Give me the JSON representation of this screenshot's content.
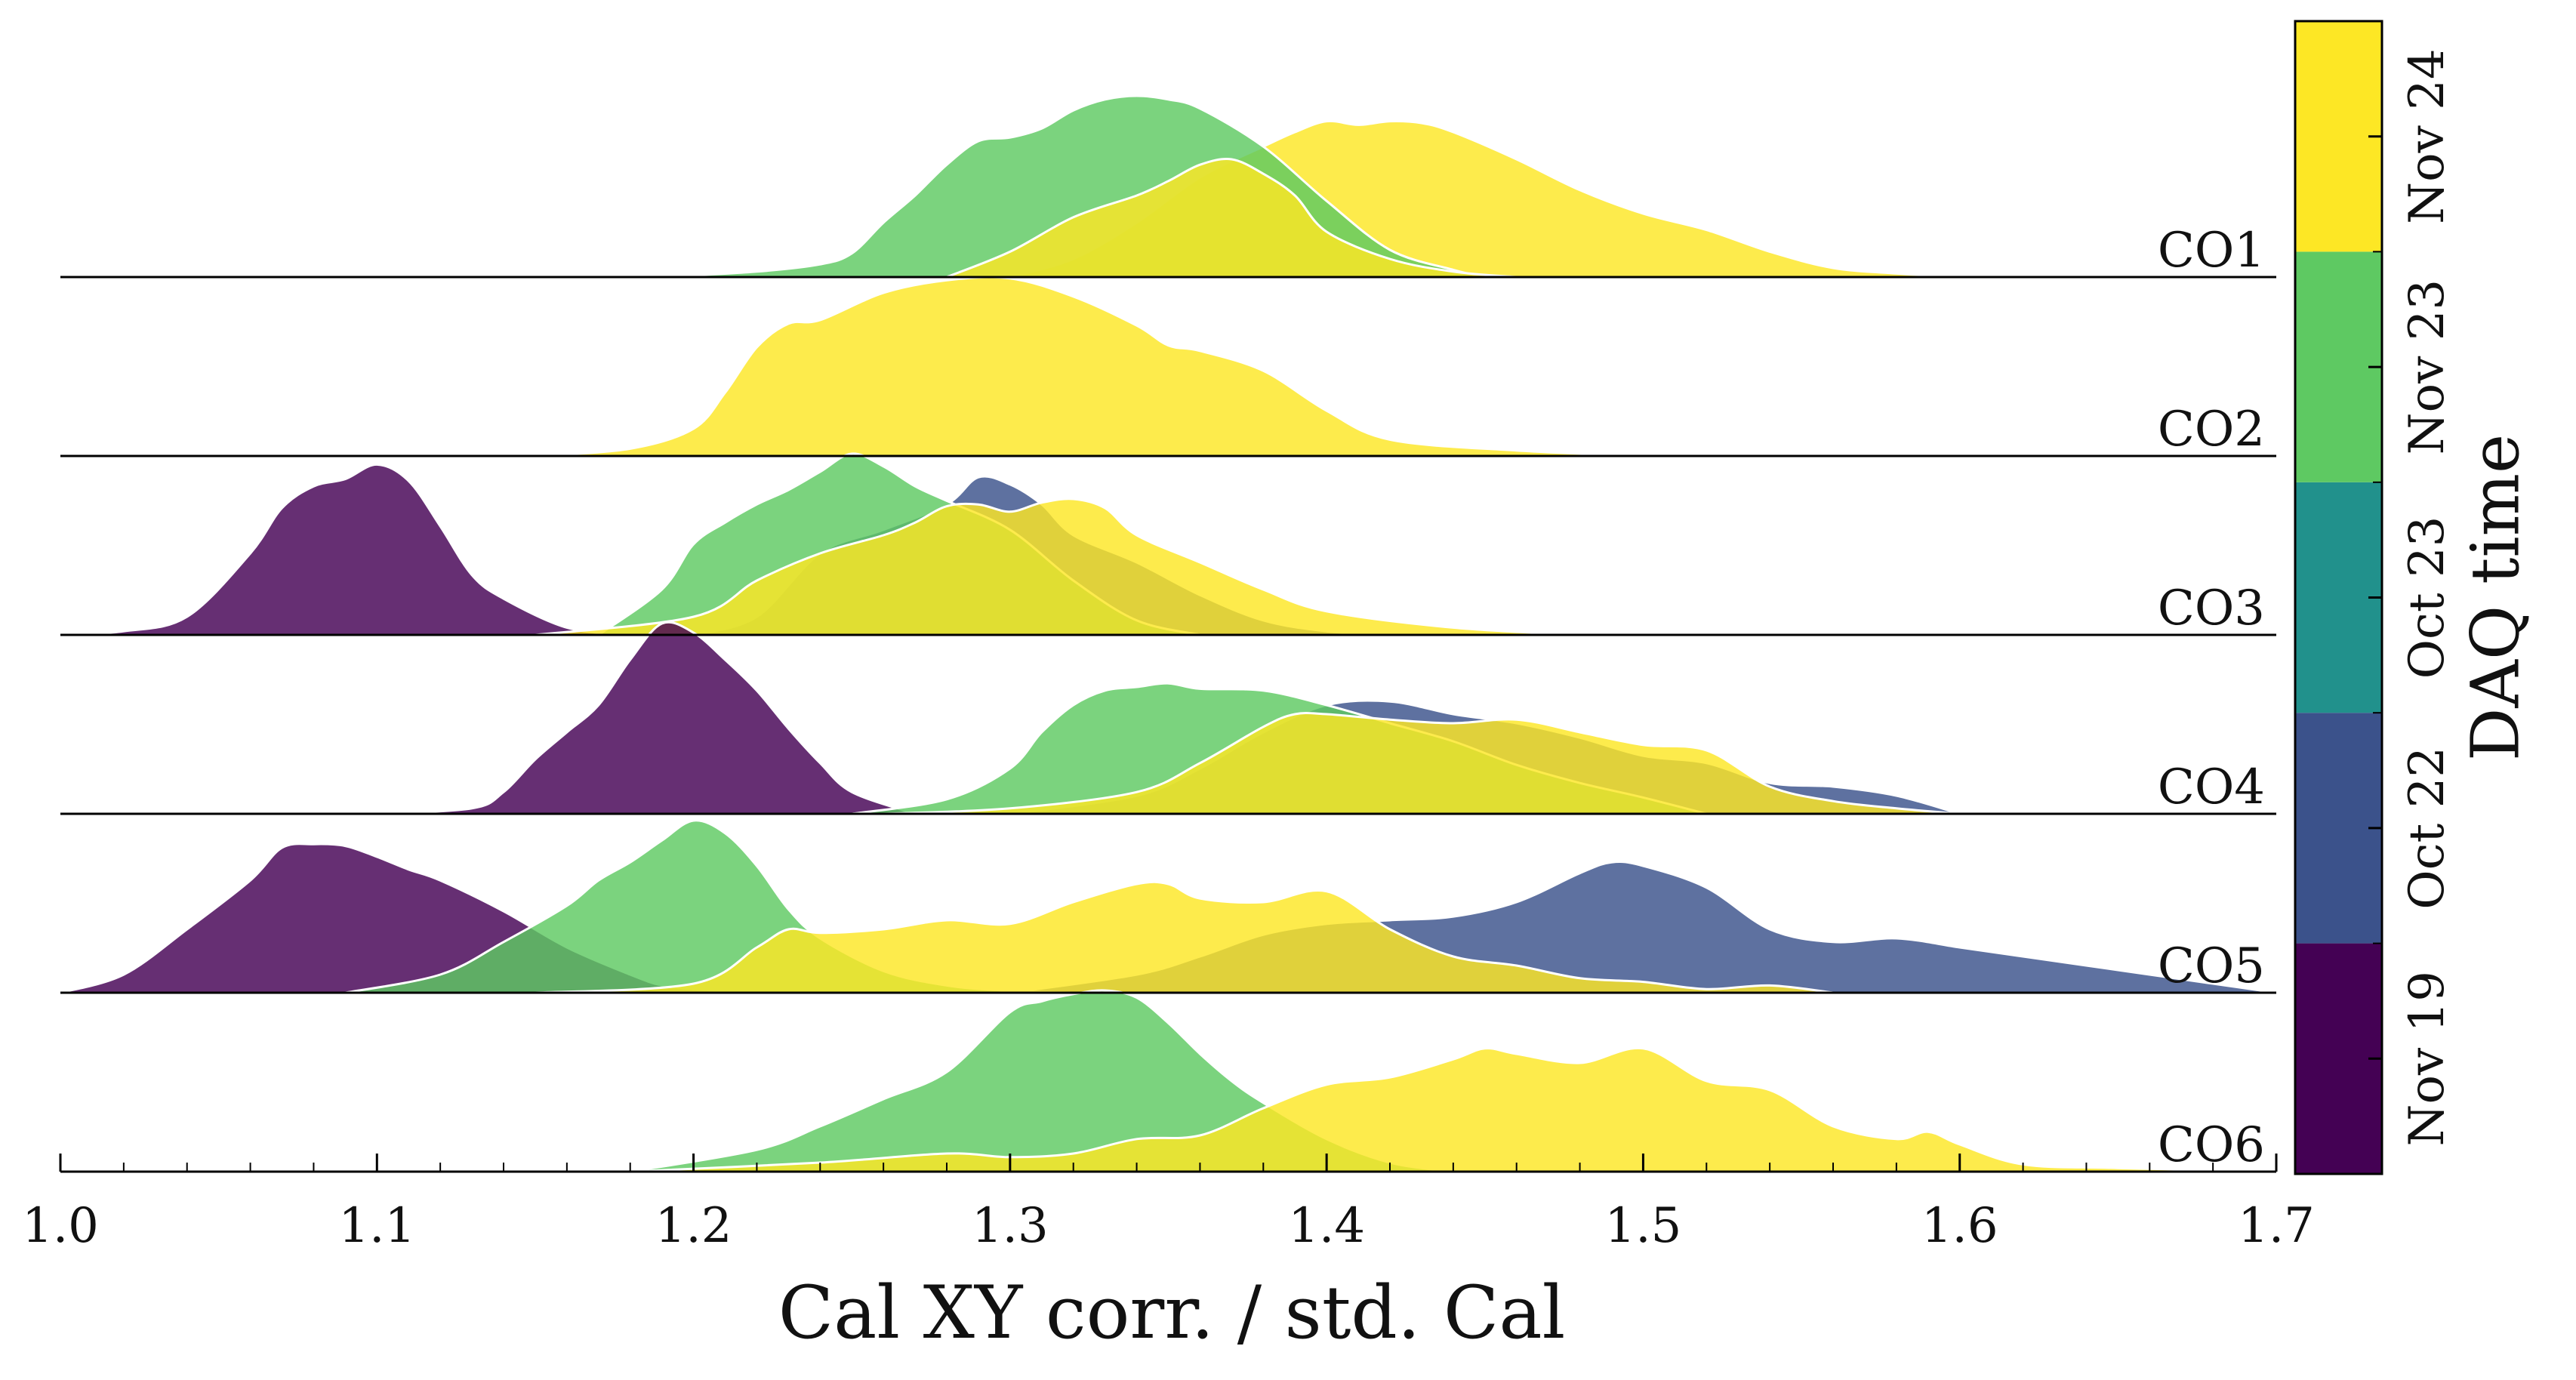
{
  "chart_data": {
    "type": "area",
    "subtype": "ridgeline",
    "xlabel": "Cal XY corr. / std. Cal",
    "xlim": [
      1.0,
      1.7
    ],
    "xticks": [
      "1.0",
      "1.1",
      "1.2",
      "1.3",
      "1.4",
      "1.5",
      "1.6",
      "1.7"
    ],
    "rows": [
      "CO1",
      "CO2",
      "CO3",
      "CO4",
      "CO5",
      "CO6"
    ],
    "colorbar": {
      "title": "DAQ time",
      "labels": [
        "Nov 19",
        "Oct 22",
        "Oct 23",
        "Nov 23",
        "Nov 24"
      ],
      "colors": [
        "#440154",
        "#3b528b",
        "#21918c",
        "#5ec962",
        "#fde725"
      ]
    },
    "series": [
      {
        "row": "CO1",
        "label": "Nov 24",
        "color": "#fde725",
        "x": [
          1.3,
          1.32,
          1.34,
          1.36,
          1.38,
          1.39,
          1.4,
          1.41,
          1.42,
          1.43,
          1.44,
          1.46,
          1.48,
          1.5,
          1.52,
          1.54,
          1.56,
          1.58,
          1.6
        ],
        "y": [
          0.0,
          0.1,
          0.3,
          0.55,
          0.72,
          0.8,
          0.86,
          0.84,
          0.86,
          0.85,
          0.8,
          0.65,
          0.48,
          0.35,
          0.26,
          0.14,
          0.05,
          0.02,
          0.0
        ]
      },
      {
        "row": "CO1",
        "label": "Nov 23",
        "color": "#5ec962",
        "x": [
          1.19,
          1.22,
          1.24,
          1.25,
          1.26,
          1.27,
          1.28,
          1.29,
          1.3,
          1.31,
          1.32,
          1.33,
          1.34,
          1.35,
          1.36,
          1.38,
          1.4,
          1.42,
          1.44,
          1.45
        ],
        "y": [
          0.0,
          0.03,
          0.07,
          0.13,
          0.3,
          0.45,
          0.62,
          0.75,
          0.77,
          0.82,
          0.92,
          0.98,
          1.0,
          0.98,
          0.93,
          0.72,
          0.42,
          0.15,
          0.04,
          0.0
        ]
      },
      {
        "row": "CO1",
        "label": "Nov 24",
        "color": "#fde725",
        "x": [
          1.28,
          1.3,
          1.32,
          1.34,
          1.35,
          1.36,
          1.37,
          1.38,
          1.39,
          1.4,
          1.42,
          1.44,
          1.46
        ],
        "y": [
          0.0,
          0.14,
          0.33,
          0.45,
          0.53,
          0.62,
          0.65,
          0.57,
          0.45,
          0.25,
          0.1,
          0.03,
          0.0
        ]
      },
      {
        "row": "CO2",
        "label": "Nov 24",
        "color": "#fde725",
        "x": [
          1.15,
          1.18,
          1.2,
          1.21,
          1.22,
          1.23,
          1.24,
          1.26,
          1.28,
          1.3,
          1.32,
          1.34,
          1.35,
          1.36,
          1.38,
          1.4,
          1.42,
          1.46,
          1.5
        ],
        "y": [
          0.0,
          0.04,
          0.15,
          0.35,
          0.6,
          0.73,
          0.75,
          0.9,
          0.97,
          0.98,
          0.88,
          0.72,
          0.61,
          0.58,
          0.47,
          0.25,
          0.09,
          0.03,
          0.0
        ]
      },
      {
        "row": "CO3",
        "label": "Nov 19",
        "color": "#440154",
        "x": [
          1.0,
          1.02,
          1.04,
          1.06,
          1.07,
          1.08,
          1.09,
          1.1,
          1.11,
          1.12,
          1.13,
          1.14,
          1.16,
          1.18
        ],
        "y": [
          0.0,
          0.02,
          0.1,
          0.45,
          0.7,
          0.82,
          0.86,
          0.94,
          0.85,
          0.6,
          0.33,
          0.2,
          0.04,
          0.0
        ]
      },
      {
        "row": "CO3",
        "label": "Oct 22",
        "color": "#3b528b",
        "x": [
          1.2,
          1.22,
          1.24,
          1.26,
          1.28,
          1.29,
          1.3,
          1.31,
          1.32,
          1.34,
          1.36,
          1.38,
          1.4,
          1.42
        ],
        "y": [
          0.0,
          0.1,
          0.45,
          0.58,
          0.72,
          0.87,
          0.83,
          0.72,
          0.55,
          0.4,
          0.22,
          0.08,
          0.02,
          0.0
        ]
      },
      {
        "row": "CO3",
        "label": "Nov 23",
        "color": "#5ec962",
        "x": [
          1.17,
          1.19,
          1.2,
          1.21,
          1.22,
          1.23,
          1.24,
          1.25,
          1.26,
          1.27,
          1.28,
          1.3,
          1.32,
          1.34,
          1.36
        ],
        "y": [
          0.0,
          0.25,
          0.5,
          0.62,
          0.72,
          0.8,
          0.9,
          1.0,
          0.93,
          0.82,
          0.74,
          0.58,
          0.3,
          0.08,
          0.0
        ]
      },
      {
        "row": "CO3",
        "label": "Nov 24",
        "color": "#fde725",
        "x": [
          1.15,
          1.2,
          1.22,
          1.24,
          1.26,
          1.27,
          1.28,
          1.29,
          1.3,
          1.31,
          1.32,
          1.33,
          1.34,
          1.36,
          1.38,
          1.4,
          1.44,
          1.48
        ],
        "y": [
          0.0,
          0.1,
          0.3,
          0.45,
          0.55,
          0.62,
          0.71,
          0.72,
          0.68,
          0.73,
          0.75,
          0.7,
          0.55,
          0.4,
          0.25,
          0.13,
          0.04,
          0.0
        ]
      },
      {
        "row": "CO4",
        "label": "Nov 19",
        "color": "#440154",
        "x": [
          1.1,
          1.13,
          1.14,
          1.15,
          1.16,
          1.17,
          1.18,
          1.19,
          1.2,
          1.21,
          1.22,
          1.23,
          1.24,
          1.25,
          1.27
        ],
        "y": [
          0.0,
          0.03,
          0.12,
          0.3,
          0.45,
          0.6,
          0.85,
          1.05,
          1.0,
          0.85,
          0.68,
          0.47,
          0.28,
          0.12,
          0.0
        ]
      },
      {
        "row": "CO4",
        "label": "Oct 22",
        "color": "#3b528b",
        "x": [
          1.3,
          1.34,
          1.36,
          1.38,
          1.4,
          1.42,
          1.44,
          1.46,
          1.48,
          1.5,
          1.52,
          1.54,
          1.56,
          1.58,
          1.6
        ],
        "y": [
          0.0,
          0.1,
          0.25,
          0.45,
          0.6,
          0.62,
          0.55,
          0.5,
          0.42,
          0.32,
          0.28,
          0.17,
          0.15,
          0.1,
          0.0
        ]
      },
      {
        "row": "CO4",
        "label": "Nov 23",
        "color": "#5ec962",
        "x": [
          1.25,
          1.28,
          1.3,
          1.31,
          1.32,
          1.33,
          1.34,
          1.35,
          1.36,
          1.38,
          1.4,
          1.42,
          1.44,
          1.46,
          1.48,
          1.5,
          1.52
        ],
        "y": [
          0.0,
          0.08,
          0.25,
          0.45,
          0.6,
          0.68,
          0.7,
          0.72,
          0.69,
          0.68,
          0.6,
          0.5,
          0.4,
          0.27,
          0.17,
          0.09,
          0.0
        ]
      },
      {
        "row": "CO4",
        "label": "Nov 24",
        "color": "#fde725",
        "x": [
          1.26,
          1.3,
          1.34,
          1.36,
          1.38,
          1.39,
          1.4,
          1.42,
          1.44,
          1.46,
          1.48,
          1.5,
          1.52,
          1.54,
          1.56,
          1.58,
          1.6
        ],
        "y": [
          0.0,
          0.03,
          0.12,
          0.28,
          0.48,
          0.55,
          0.55,
          0.52,
          0.5,
          0.52,
          0.45,
          0.38,
          0.35,
          0.15,
          0.07,
          0.03,
          0.0
        ]
      },
      {
        "row": "CO5",
        "label": "Nov 19",
        "color": "#440154",
        "x": [
          1.0,
          1.02,
          1.04,
          1.06,
          1.07,
          1.08,
          1.09,
          1.1,
          1.11,
          1.12,
          1.14,
          1.16,
          1.18,
          1.19,
          1.2,
          1.22
        ],
        "y": [
          0.0,
          0.1,
          0.35,
          0.62,
          0.8,
          0.82,
          0.81,
          0.75,
          0.68,
          0.62,
          0.45,
          0.25,
          0.1,
          0.04,
          0.02,
          0.0
        ]
      },
      {
        "row": "CO5",
        "label": "Oct 22",
        "color": "#3b528b",
        "x": [
          1.3,
          1.34,
          1.36,
          1.38,
          1.4,
          1.42,
          1.44,
          1.46,
          1.48,
          1.49,
          1.5,
          1.52,
          1.54,
          1.56,
          1.58,
          1.6,
          1.62,
          1.64,
          1.66,
          1.68,
          1.7
        ],
        "y": [
          0.0,
          0.1,
          0.2,
          0.32,
          0.38,
          0.4,
          0.42,
          0.5,
          0.66,
          0.72,
          0.7,
          0.58,
          0.35,
          0.28,
          0.3,
          0.25,
          0.2,
          0.15,
          0.1,
          0.05,
          0.0
        ]
      },
      {
        "row": "CO5",
        "label": "Nov 23",
        "color": "#5ec962",
        "x": [
          1.09,
          1.12,
          1.14,
          1.16,
          1.17,
          1.18,
          1.19,
          1.2,
          1.21,
          1.22,
          1.23,
          1.24,
          1.26,
          1.28,
          1.3,
          1.32
        ],
        "y": [
          0.0,
          0.1,
          0.28,
          0.48,
          0.62,
          0.72,
          0.84,
          0.95,
          0.88,
          0.7,
          0.46,
          0.3,
          0.12,
          0.04,
          0.01,
          0.0
        ]
      },
      {
        "row": "CO5",
        "label": "Nov 24",
        "color": "#fde725",
        "x": [
          1.15,
          1.2,
          1.22,
          1.23,
          1.24,
          1.26,
          1.28,
          1.3,
          1.32,
          1.34,
          1.35,
          1.36,
          1.38,
          1.4,
          1.42,
          1.44,
          1.46,
          1.48,
          1.5,
          1.52,
          1.54,
          1.56
        ],
        "y": [
          0.0,
          0.05,
          0.25,
          0.35,
          0.33,
          0.35,
          0.4,
          0.38,
          0.5,
          0.6,
          0.6,
          0.52,
          0.5,
          0.56,
          0.35,
          0.2,
          0.15,
          0.08,
          0.06,
          0.02,
          0.04,
          0.0
        ]
      },
      {
        "row": "CO6",
        "label": "Nov 23",
        "color": "#5ec962",
        "x": [
          1.18,
          1.22,
          1.24,
          1.26,
          1.28,
          1.3,
          1.31,
          1.32,
          1.33,
          1.34,
          1.35,
          1.36,
          1.37,
          1.38,
          1.4,
          1.42,
          1.44
        ],
        "y": [
          0.0,
          0.12,
          0.25,
          0.4,
          0.55,
          0.88,
          0.94,
          0.98,
          1.0,
          0.96,
          0.82,
          0.65,
          0.5,
          0.38,
          0.18,
          0.05,
          0.0
        ]
      },
      {
        "row": "CO6",
        "label": "Nov 24",
        "color": "#fde725",
        "x": [
          1.18,
          1.24,
          1.28,
          1.3,
          1.32,
          1.34,
          1.36,
          1.38,
          1.4,
          1.42,
          1.44,
          1.45,
          1.46,
          1.48,
          1.5,
          1.52,
          1.54,
          1.56,
          1.58,
          1.59,
          1.6,
          1.62,
          1.65,
          1.7
        ],
        "y": [
          0.0,
          0.05,
          0.1,
          0.08,
          0.1,
          0.18,
          0.2,
          0.35,
          0.48,
          0.52,
          0.62,
          0.68,
          0.65,
          0.6,
          0.68,
          0.5,
          0.45,
          0.25,
          0.18,
          0.22,
          0.15,
          0.04,
          0.02,
          0.0
        ]
      }
    ]
  }
}
